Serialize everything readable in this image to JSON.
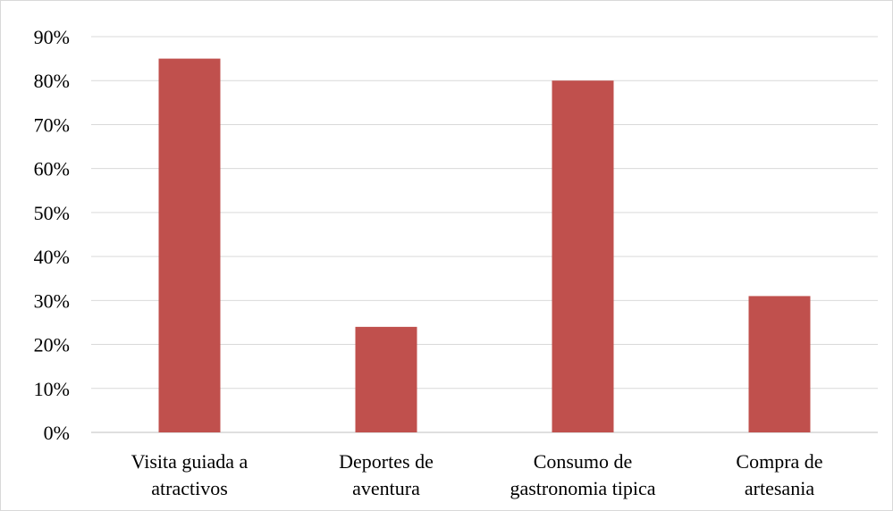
{
  "chart_data": {
    "type": "bar",
    "categories": [
      [
        "Visita guiada a",
        "atractivos"
      ],
      [
        "Deportes de",
        "aventura"
      ],
      [
        "Consumo de",
        "gastronomia tipica"
      ],
      [
        "Compra de",
        "artesania"
      ]
    ],
    "values": [
      85,
      24,
      80,
      31
    ],
    "ylim": [
      0,
      90
    ],
    "yticks": [
      "0%",
      "10%",
      "20%",
      "30%",
      "40%",
      "50%",
      "60%",
      "70%",
      "80%",
      "90%"
    ],
    "bar_color": "#c0504d",
    "grid": true,
    "title": "",
    "xlabel": "",
    "ylabel": ""
  }
}
